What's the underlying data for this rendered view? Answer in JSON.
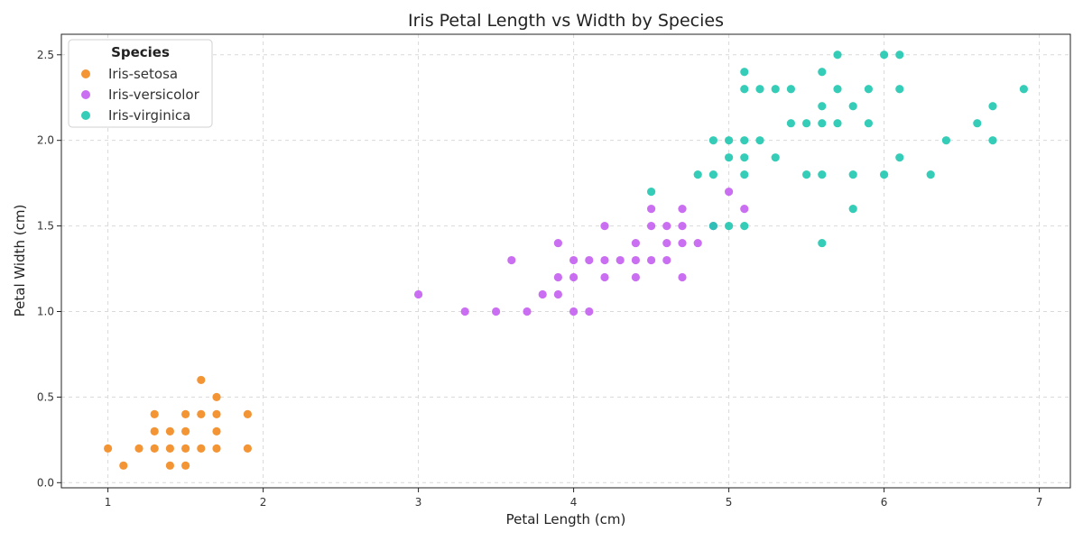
{
  "chart_data": {
    "type": "scatter",
    "title": "Iris Petal Length vs Width by Species",
    "xlabel": "Petal Length (cm)",
    "ylabel": "Petal Width (cm)",
    "xlim": [
      0.7,
      7.2
    ],
    "ylim": [
      -0.03,
      2.62
    ],
    "x_ticks": [
      1,
      2,
      3,
      4,
      5,
      6,
      7
    ],
    "y_ticks": [
      0.0,
      0.5,
      1.0,
      1.5,
      2.0,
      2.5
    ],
    "grid": true,
    "legend": {
      "title": "Species",
      "placement": "top-left"
    },
    "series": [
      {
        "name": "Iris-setosa",
        "color": "#f28a1f",
        "points": [
          [
            1.0,
            0.2
          ],
          [
            1.1,
            0.1
          ],
          [
            1.2,
            0.2
          ],
          [
            1.3,
            0.2
          ],
          [
            1.3,
            0.3
          ],
          [
            1.3,
            0.4
          ],
          [
            1.4,
            0.1
          ],
          [
            1.4,
            0.2
          ],
          [
            1.4,
            0.3
          ],
          [
            1.5,
            0.1
          ],
          [
            1.5,
            0.2
          ],
          [
            1.5,
            0.3
          ],
          [
            1.5,
            0.4
          ],
          [
            1.6,
            0.2
          ],
          [
            1.6,
            0.4
          ],
          [
            1.6,
            0.6
          ],
          [
            1.7,
            0.2
          ],
          [
            1.7,
            0.3
          ],
          [
            1.7,
            0.4
          ],
          [
            1.7,
            0.5
          ],
          [
            1.9,
            0.2
          ],
          [
            1.9,
            0.4
          ]
        ]
      },
      {
        "name": "Iris-versicolor",
        "color": "#c45ff0",
        "points": [
          [
            3.0,
            1.1
          ],
          [
            3.3,
            1.0
          ],
          [
            3.5,
            1.0
          ],
          [
            3.6,
            1.3
          ],
          [
            3.7,
            1.0
          ],
          [
            3.8,
            1.1
          ],
          [
            3.9,
            1.1
          ],
          [
            3.9,
            1.2
          ],
          [
            3.9,
            1.4
          ],
          [
            4.0,
            1.0
          ],
          [
            4.0,
            1.2
          ],
          [
            4.0,
            1.3
          ],
          [
            4.1,
            1.0
          ],
          [
            4.1,
            1.3
          ],
          [
            4.2,
            1.2
          ],
          [
            4.2,
            1.3
          ],
          [
            4.2,
            1.5
          ],
          [
            4.3,
            1.3
          ],
          [
            4.4,
            1.2
          ],
          [
            4.4,
            1.3
          ],
          [
            4.4,
            1.4
          ],
          [
            4.5,
            1.3
          ],
          [
            4.5,
            1.5
          ],
          [
            4.5,
            1.6
          ],
          [
            4.6,
            1.3
          ],
          [
            4.6,
            1.4
          ],
          [
            4.6,
            1.5
          ],
          [
            4.7,
            1.2
          ],
          [
            4.7,
            1.4
          ],
          [
            4.7,
            1.5
          ],
          [
            4.7,
            1.6
          ],
          [
            4.8,
            1.4
          ],
          [
            4.9,
            1.5
          ],
          [
            5.0,
            1.7
          ],
          [
            5.1,
            1.6
          ]
        ]
      },
      {
        "name": "Iris-virginica",
        "color": "#1fc8b0",
        "points": [
          [
            4.5,
            1.7
          ],
          [
            4.8,
            1.8
          ],
          [
            4.9,
            1.8
          ],
          [
            4.9,
            2.0
          ],
          [
            4.9,
            1.5
          ],
          [
            5.0,
            1.5
          ],
          [
            5.0,
            1.9
          ],
          [
            5.0,
            2.0
          ],
          [
            5.1,
            1.5
          ],
          [
            5.1,
            1.8
          ],
          [
            5.1,
            1.9
          ],
          [
            5.1,
            2.0
          ],
          [
            5.1,
            2.3
          ],
          [
            5.1,
            2.4
          ],
          [
            5.2,
            2.0
          ],
          [
            5.2,
            2.3
          ],
          [
            5.3,
            1.9
          ],
          [
            5.3,
            2.3
          ],
          [
            5.4,
            2.1
          ],
          [
            5.4,
            2.3
          ],
          [
            5.5,
            1.8
          ],
          [
            5.5,
            2.1
          ],
          [
            5.6,
            1.4
          ],
          [
            5.6,
            1.8
          ],
          [
            5.6,
            2.1
          ],
          [
            5.6,
            2.2
          ],
          [
            5.6,
            2.4
          ],
          [
            5.7,
            2.1
          ],
          [
            5.7,
            2.3
          ],
          [
            5.7,
            2.5
          ],
          [
            5.8,
            1.6
          ],
          [
            5.8,
            1.8
          ],
          [
            5.8,
            2.2
          ],
          [
            5.9,
            2.1
          ],
          [
            5.9,
            2.3
          ],
          [
            6.0,
            1.8
          ],
          [
            6.0,
            2.5
          ],
          [
            6.1,
            1.9
          ],
          [
            6.1,
            2.3
          ],
          [
            6.1,
            2.5
          ],
          [
            6.3,
            1.8
          ],
          [
            6.4,
            2.0
          ],
          [
            6.6,
            2.1
          ],
          [
            6.7,
            2.0
          ],
          [
            6.7,
            2.2
          ],
          [
            6.9,
            2.3
          ]
        ]
      }
    ]
  }
}
